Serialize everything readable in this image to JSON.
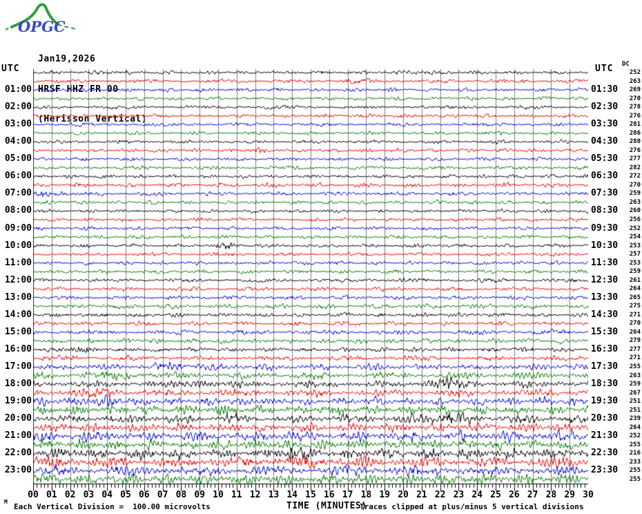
{
  "logo": {
    "text": "OPGC",
    "text_color": "#3b49c4",
    "ridge_color": "#2f9e3f"
  },
  "header": {
    "date": "Jan19,2026",
    "station": "HRSF HHZ FR 00",
    "description": "(Herisson Vertical)"
  },
  "axis": {
    "left_header": "UTC",
    "right_header": "UTC",
    "dc_header": "DC",
    "x_title": "TIME (MINUTES)",
    "footer_prefix": "M",
    "footer_left": "Each Vertical Division =  100.00 microvolts",
    "footer_right": "Traces clipped at plus/minus 5 vertical divisions",
    "x_tick_labels": [
      "00",
      "01",
      "02",
      "03",
      "04",
      "05",
      "06",
      "07",
      "08",
      "09",
      "10",
      "11",
      "12",
      "13",
      "14",
      "15",
      "16",
      "17",
      "18",
      "19",
      "20",
      "21",
      "22",
      "23",
      "24",
      "25",
      "26",
      "27",
      "28",
      "29",
      "30"
    ]
  },
  "chart_data": {
    "type": "line",
    "subtype": "helicorder-seismogram",
    "x_axis": {
      "title": "TIME (MINUTES)",
      "min": 0,
      "max": 30,
      "minor_ticks_per_minute": 5
    },
    "grid": {
      "vertical_gridlines_every_minute": true,
      "color": "#7d7d7d"
    },
    "colors": {
      "cycle": [
        "#000000",
        "#ee0000",
        "#0000dd",
        "#007a00"
      ],
      "grid": "#7d7d7d",
      "axis": "#000000"
    },
    "clip_note_divisions": 5,
    "traces": [
      {
        "start": "00:00",
        "end": "00:30",
        "left_label": "",
        "right_label": "",
        "dc": 252,
        "amp": 2.2,
        "bursts": [
          [
            4,
            1,
            1.3
          ],
          [
            21,
            1,
            1.1
          ]
        ]
      },
      {
        "start": "00:30",
        "end": "01:00",
        "left_label": "",
        "right_label": "",
        "dc": 263,
        "amp": 2.3,
        "bursts": [
          [
            17.5,
            1,
            1.3
          ]
        ]
      },
      {
        "start": "01:00",
        "end": "01:30",
        "left_label": "01:00",
        "right_label": "01:30",
        "dc": 269,
        "amp": 2.2,
        "bursts": []
      },
      {
        "start": "01:30",
        "end": "02:00",
        "left_label": "",
        "right_label": "",
        "dc": 270,
        "amp": 2.1,
        "bursts": []
      },
      {
        "start": "02:00",
        "end": "02:30",
        "left_label": "02:00",
        "right_label": "02:30",
        "dc": 278,
        "amp": 2.2,
        "bursts": []
      },
      {
        "start": "02:30",
        "end": "03:00",
        "left_label": "",
        "right_label": "",
        "dc": 276,
        "amp": 2.3,
        "bursts": []
      },
      {
        "start": "03:00",
        "end": "03:30",
        "left_label": "03:00",
        "right_label": "03:30",
        "dc": 281,
        "amp": 2.2,
        "bursts": []
      },
      {
        "start": "03:30",
        "end": "04:00",
        "left_label": "",
        "right_label": "",
        "dc": 286,
        "amp": 2.1,
        "bursts": []
      },
      {
        "start": "04:00",
        "end": "04:30",
        "left_label": "04:00",
        "right_label": "04:30",
        "dc": 280,
        "amp": 2.2,
        "bursts": []
      },
      {
        "start": "04:30",
        "end": "05:00",
        "left_label": "",
        "right_label": "",
        "dc": 276,
        "amp": 2.3,
        "bursts": [
          [
            12,
            1,
            1.4
          ]
        ]
      },
      {
        "start": "05:00",
        "end": "05:30",
        "left_label": "05:00",
        "right_label": "05:30",
        "dc": 277,
        "amp": 2.2,
        "bursts": []
      },
      {
        "start": "05:30",
        "end": "06:00",
        "left_label": "",
        "right_label": "",
        "dc": 282,
        "amp": 2.2,
        "bursts": []
      },
      {
        "start": "06:00",
        "end": "06:30",
        "left_label": "06:00",
        "right_label": "06:30",
        "dc": 272,
        "amp": 2.3,
        "bursts": []
      },
      {
        "start": "06:30",
        "end": "07:00",
        "left_label": "",
        "right_label": "",
        "dc": 270,
        "amp": 2.6,
        "bursts": []
      },
      {
        "start": "07:00",
        "end": "07:30",
        "left_label": "07:00",
        "right_label": "07:30",
        "dc": 259,
        "amp": 2.4,
        "bursts": [
          [
            1,
            1.5,
            2.6
          ]
        ]
      },
      {
        "start": "07:30",
        "end": "08:00",
        "left_label": "",
        "right_label": "",
        "dc": 263,
        "amp": 2.2,
        "bursts": []
      },
      {
        "start": "08:00",
        "end": "08:30",
        "left_label": "08:00",
        "right_label": "08:30",
        "dc": 260,
        "amp": 2.1,
        "bursts": []
      },
      {
        "start": "08:30",
        "end": "09:00",
        "left_label": "",
        "right_label": "",
        "dc": 256,
        "amp": 2.2,
        "bursts": []
      },
      {
        "start": "09:00",
        "end": "09:30",
        "left_label": "09:00",
        "right_label": "09:30",
        "dc": 252,
        "amp": 2.2,
        "bursts": []
      },
      {
        "start": "09:30",
        "end": "10:00",
        "left_label": "",
        "right_label": "",
        "dc": 254,
        "amp": 2.2,
        "bursts": []
      },
      {
        "start": "10:00",
        "end": "10:30",
        "left_label": "10:00",
        "right_label": "10:30",
        "dc": 253,
        "amp": 2.3,
        "bursts": [
          [
            10.5,
            0.8,
            1.5
          ]
        ]
      },
      {
        "start": "10:30",
        "end": "11:00",
        "left_label": "",
        "right_label": "",
        "dc": 257,
        "amp": 2.2,
        "bursts": []
      },
      {
        "start": "11:00",
        "end": "11:30",
        "left_label": "11:00",
        "right_label": "11:30",
        "dc": 253,
        "amp": 2.2,
        "bursts": []
      },
      {
        "start": "11:30",
        "end": "12:00",
        "left_label": "",
        "right_label": "",
        "dc": 259,
        "amp": 2.3,
        "bursts": []
      },
      {
        "start": "12:00",
        "end": "12:30",
        "left_label": "12:00",
        "right_label": "12:30",
        "dc": 261,
        "amp": 2.4,
        "bursts": []
      },
      {
        "start": "12:30",
        "end": "13:00",
        "left_label": "",
        "right_label": "",
        "dc": 264,
        "amp": 2.4,
        "bursts": []
      },
      {
        "start": "13:00",
        "end": "13:30",
        "left_label": "13:00",
        "right_label": "13:30",
        "dc": 265,
        "amp": 2.5,
        "bursts": []
      },
      {
        "start": "13:30",
        "end": "14:00",
        "left_label": "",
        "right_label": "",
        "dc": 275,
        "amp": 2.8,
        "bursts": []
      },
      {
        "start": "14:00",
        "end": "14:30",
        "left_label": "14:00",
        "right_label": "14:30",
        "dc": 271,
        "amp": 2.7,
        "bursts": []
      },
      {
        "start": "14:30",
        "end": "15:00",
        "left_label": "",
        "right_label": "",
        "dc": 270,
        "amp": 2.6,
        "bursts": []
      },
      {
        "start": "15:00",
        "end": "15:30",
        "left_label": "15:00",
        "right_label": "15:30",
        "dc": 264,
        "amp": 2.8,
        "bursts": []
      },
      {
        "start": "15:30",
        "end": "16:00",
        "left_label": "",
        "right_label": "",
        "dc": 279,
        "amp": 2.9,
        "bursts": []
      },
      {
        "start": "16:00",
        "end": "16:30",
        "left_label": "16:00",
        "right_label": "16:30",
        "dc": 277,
        "amp": 2.9,
        "bursts": [
          [
            2.5,
            1,
            1.8
          ]
        ]
      },
      {
        "start": "16:30",
        "end": "17:00",
        "left_label": "",
        "right_label": "",
        "dc": 271,
        "amp": 3.0,
        "bursts": []
      },
      {
        "start": "17:00",
        "end": "17:30",
        "left_label": "17:00",
        "right_label": "17:30",
        "dc": 255,
        "amp": 3.2,
        "bursts": [
          [
            8,
            1.5,
            1.8
          ]
        ]
      },
      {
        "start": "17:30",
        "end": "18:00",
        "left_label": "",
        "right_label": "",
        "dc": 263,
        "amp": 3.4,
        "bursts": [
          [
            5,
            1.5,
            2.2
          ]
        ]
      },
      {
        "start": "18:00",
        "end": "18:30",
        "left_label": "18:00",
        "right_label": "18:30",
        "dc": 259,
        "amp": 3.5,
        "bursts": [
          [
            9,
            1,
            2.2
          ],
          [
            22.3,
            1.4,
            4.2
          ]
        ]
      },
      {
        "start": "18:30",
        "end": "19:00",
        "left_label": "",
        "right_label": "",
        "dc": 267,
        "amp": 3.6,
        "bursts": [
          [
            3,
            1.5,
            2.2
          ]
        ]
      },
      {
        "start": "19:00",
        "end": "19:30",
        "left_label": "19:00",
        "right_label": "19:30",
        "dc": 251,
        "amp": 4.0,
        "bursts": [
          [
            4,
            1.5,
            2.2
          ]
        ]
      },
      {
        "start": "19:30",
        "end": "20:00",
        "left_label": "",
        "right_label": "",
        "dc": 251,
        "amp": 4.4,
        "bursts": []
      },
      {
        "start": "20:00",
        "end": "20:30",
        "left_label": "20:00",
        "right_label": "20:30",
        "dc": 239,
        "amp": 4.4,
        "bursts": [
          [
            22.5,
            1.5,
            2.2
          ]
        ]
      },
      {
        "start": "20:30",
        "end": "21:00",
        "left_label": "",
        "right_label": "",
        "dc": 264,
        "amp": 4.5,
        "bursts": []
      },
      {
        "start": "21:00",
        "end": "21:30",
        "left_label": "21:00",
        "right_label": "21:30",
        "dc": 252,
        "amp": 4.8,
        "bursts": [
          [
            13,
            1,
            1.8
          ]
        ]
      },
      {
        "start": "21:30",
        "end": "22:00",
        "left_label": "",
        "right_label": "",
        "dc": 255,
        "amp": 5.0,
        "bursts": []
      },
      {
        "start": "22:00",
        "end": "22:30",
        "left_label": "22:00",
        "right_label": "22:30",
        "dc": 216,
        "amp": 5.0,
        "bursts": [
          [
            14.2,
            0.8,
            3.6
          ]
        ]
      },
      {
        "start": "22:30",
        "end": "23:00",
        "left_label": "",
        "right_label": "",
        "dc": 233,
        "amp": 5.2,
        "bursts": [
          [
            1,
            1,
            1.8
          ],
          [
            15,
            1,
            1.8
          ]
        ]
      },
      {
        "start": "23:00",
        "end": "23:30",
        "left_label": "23:00",
        "right_label": "23:30",
        "dc": 255,
        "amp": 5.0,
        "bursts": []
      },
      {
        "start": "23:30",
        "end": "24:00",
        "left_label": "",
        "right_label": "",
        "dc": 255,
        "amp": 5.2,
        "bursts": []
      }
    ]
  }
}
